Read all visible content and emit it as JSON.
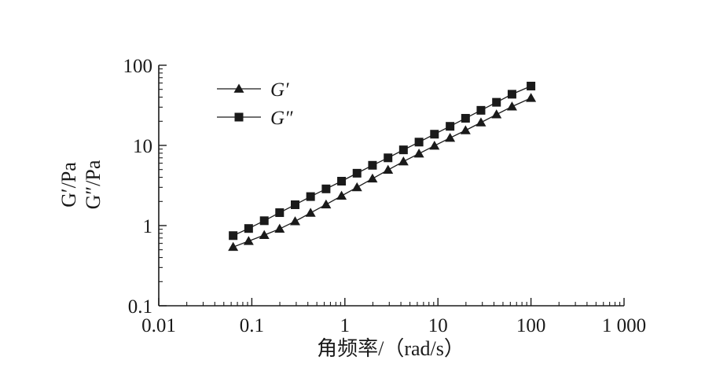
{
  "chart_data": {
    "type": "scatter",
    "xscale": "log",
    "yscale": "log",
    "xlim": [
      0.01,
      1000
    ],
    "ylim": [
      0.1,
      100
    ],
    "x_ticks": [
      0.01,
      0.1,
      1,
      10,
      100,
      1000
    ],
    "x_tick_labels": [
      "0.01",
      "0.1",
      "1",
      "10",
      "100",
      "1 000"
    ],
    "y_ticks": [
      0.1,
      1,
      10,
      100
    ],
    "y_tick_labels": [
      "0.1",
      "1",
      "10",
      "100"
    ],
    "xlabel": "角频率/（rad/s）",
    "ylabel_lines": [
      "G′/Pa",
      "G″/Pa"
    ],
    "grid": false,
    "legend_position": "top-left",
    "x": [
      0.063,
      0.0924,
      0.136,
      0.199,
      0.292,
      0.428,
      0.628,
      0.921,
      1.35,
      1.98,
      2.91,
      4.26,
      6.26,
      9.18,
      13.5,
      19.8,
      29.0,
      42.6,
      62.5,
      100
    ],
    "series": [
      {
        "name": "G′",
        "marker": "triangle",
        "color": "#1a1a1a",
        "values": [
          0.54,
          0.64,
          0.76,
          0.91,
          1.13,
          1.44,
          1.83,
          2.35,
          3.0,
          3.85,
          4.95,
          6.3,
          7.9,
          9.9,
          12.4,
          15.4,
          19.3,
          24.3,
          30.5,
          39.0
        ]
      },
      {
        "name": "G″",
        "marker": "square",
        "color": "#1a1a1a",
        "values": [
          0.75,
          0.92,
          1.15,
          1.45,
          1.82,
          2.3,
          2.87,
          3.58,
          4.5,
          5.65,
          7.0,
          8.8,
          11.0,
          13.8,
          17.3,
          21.8,
          27.4,
          34.5,
          43.5,
          55.0
        ]
      }
    ]
  }
}
